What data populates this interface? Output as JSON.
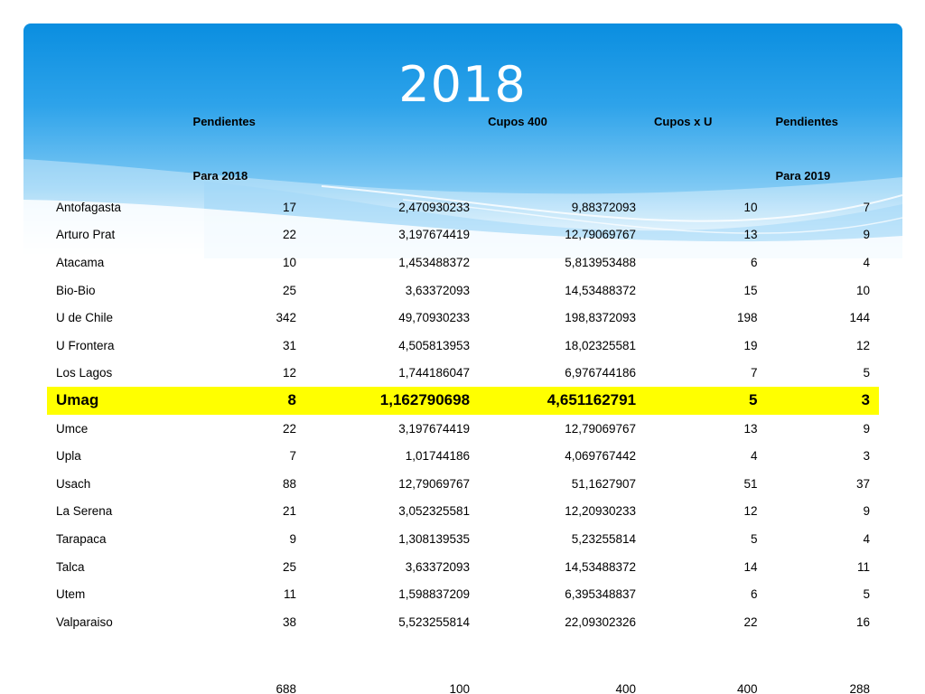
{
  "title": "2018",
  "colors": {
    "header_blue": "#0a8ee0",
    "highlight": "#ffff00"
  },
  "headers": {
    "pendientes": "Pendientes",
    "para_2018": "Para 2018",
    "cupos_400": "Cupos 400",
    "cupos_x_u": "Cupos x  U",
    "pendientes2": "Pendientes",
    "para_2019": "Para 2019"
  },
  "rows": [
    {
      "name": "Antofagasta",
      "c1": "17",
      "c2": "2,470930233",
      "c3": "9,88372093",
      "c4": "10",
      "c5": "7"
    },
    {
      "name": "Arturo Prat",
      "c1": "22",
      "c2": "3,197674419",
      "c3": "12,79069767",
      "c4": "13",
      "c5": "9"
    },
    {
      "name": "Atacama",
      "c1": "10",
      "c2": "1,453488372",
      "c3": "5,813953488",
      "c4": "6",
      "c5": "4"
    },
    {
      "name": "Bio-Bio",
      "c1": "25",
      "c2": "3,63372093",
      "c3": "14,53488372",
      "c4": "15",
      "c5": "10"
    },
    {
      "name": "U de Chile",
      "c1": "342",
      "c2": "49,70930233",
      "c3": "198,8372093",
      "c4": "198",
      "c5": "144"
    },
    {
      "name": "U Frontera",
      "c1": "31",
      "c2": "4,505813953",
      "c3": "18,02325581",
      "c4": "19",
      "c5": "12"
    },
    {
      "name": "Los Lagos",
      "c1": "12",
      "c2": "1,744186047",
      "c3": "6,976744186",
      "c4": "7",
      "c5": "5"
    },
    {
      "name": "Umag",
      "c1": "8",
      "c2": "1,162790698",
      "c3": "4,651162791",
      "c4": "5",
      "c5": "3"
    },
    {
      "name": "Umce",
      "c1": "22",
      "c2": "3,197674419",
      "c3": "12,79069767",
      "c4": "13",
      "c5": "9"
    },
    {
      "name": "Upla",
      "c1": "7",
      "c2": "1,01744186",
      "c3": "4,069767442",
      "c4": "4",
      "c5": "3"
    },
    {
      "name": "Usach",
      "c1": "88",
      "c2": "12,79069767",
      "c3": "51,1627907",
      "c4": "51",
      "c5": "37"
    },
    {
      "name": "La Serena",
      "c1": "21",
      "c2": "3,052325581",
      "c3": "12,20930233",
      "c4": "12",
      "c5": "9"
    },
    {
      "name": "Tarapaca",
      "c1": "9",
      "c2": "1,308139535",
      "c3": "5,23255814",
      "c4": "5",
      "c5": "4"
    },
    {
      "name": "Talca",
      "c1": "25",
      "c2": "3,63372093",
      "c3": "14,53488372",
      "c4": "14",
      "c5": "11"
    },
    {
      "name": "Utem",
      "c1": "11",
      "c2": "1,598837209",
      "c3": "6,395348837",
      "c4": "6",
      "c5": "5"
    },
    {
      "name": "Valparaiso",
      "c1": "38",
      "c2": "5,523255814",
      "c3": "22,09302326",
      "c4": "22",
      "c5": "16"
    }
  ],
  "totals": {
    "c1": "688",
    "c2": "100",
    "c3": "400",
    "c4": "400",
    "c5": "288"
  }
}
